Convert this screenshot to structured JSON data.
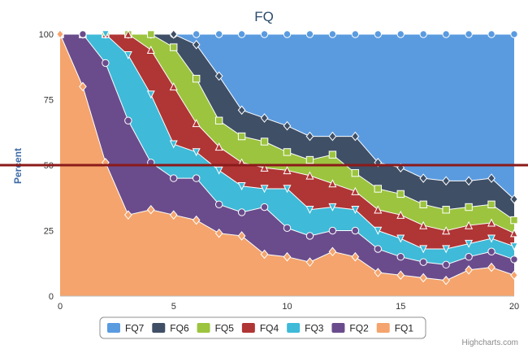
{
  "chart_data": {
    "type": "area",
    "title": "FQ",
    "xlabel": "",
    "ylabel": "Percent",
    "x": [
      0,
      1,
      2,
      3,
      4,
      5,
      6,
      7,
      8,
      9,
      10,
      11,
      12,
      13,
      14,
      15,
      16,
      17,
      18,
      19,
      20
    ],
    "xlim": [
      0,
      20
    ],
    "ylim": [
      0,
      100
    ],
    "x_ticks": [
      "0",
      "5",
      "10",
      "15",
      "20"
    ],
    "y_ticks": [
      "0",
      "25",
      "50",
      "75",
      "100"
    ],
    "grid": "horizontal",
    "legend_position": "bottom-center",
    "stacking": "cumulative boundaries (percent)",
    "series": [
      {
        "name": "FQ1",
        "color": "#f4a46c",
        "marker": "diamond",
        "values": [
          100,
          80,
          51,
          31,
          33,
          31,
          29,
          24,
          23,
          16,
          15,
          13,
          17,
          15,
          9,
          8,
          7,
          6,
          10,
          11,
          8
        ]
      },
      {
        "name": "FQ2",
        "color": "#6a4c8c",
        "marker": "circle",
        "values": [
          100,
          100,
          89,
          67,
          51,
          45,
          45,
          35,
          32,
          34,
          26,
          23,
          25,
          25,
          18,
          15,
          13,
          12,
          15,
          17,
          14
        ]
      },
      {
        "name": "FQ3",
        "color": "#3fbad8",
        "marker": "triangle-down",
        "values": [
          100,
          100,
          100,
          92,
          77,
          58,
          55,
          48,
          42,
          41,
          41,
          33,
          34,
          33,
          25,
          22,
          18,
          18,
          20,
          22,
          19
        ]
      },
      {
        "name": "FQ4",
        "color": "#b03535",
        "marker": "triangle",
        "values": [
          100,
          100,
          100,
          100,
          94,
          80,
          66,
          57,
          51,
          49,
          48,
          46,
          43,
          40,
          33,
          31,
          27,
          25,
          27,
          28,
          24
        ]
      },
      {
        "name": "FQ5",
        "color": "#9cc43f",
        "marker": "square",
        "values": [
          100,
          100,
          100,
          100,
          100,
          95,
          83,
          67,
          61,
          59,
          55,
          52,
          54,
          47,
          41,
          39,
          35,
          33,
          34,
          35,
          29
        ]
      },
      {
        "name": "FQ6",
        "color": "#3f4f66",
        "marker": "diamond",
        "values": [
          100,
          100,
          100,
          100,
          100,
          100,
          96,
          84,
          71,
          68,
          65,
          61,
          61,
          61,
          51,
          49,
          45,
          44,
          44,
          45,
          37
        ]
      },
      {
        "name": "FQ7",
        "color": "#5a9be0",
        "marker": "circle",
        "values": [
          100,
          100,
          100,
          100,
          100,
          100,
          100,
          100,
          100,
          100,
          100,
          100,
          100,
          100,
          100,
          100,
          100,
          100,
          100,
          100,
          100
        ]
      }
    ],
    "legend_order": [
      "FQ7",
      "FQ6",
      "FQ5",
      "FQ4",
      "FQ3",
      "FQ2",
      "FQ1"
    ],
    "reference_line": {
      "value": 50,
      "color": "#8b1a1a"
    },
    "credit": "Highcharts.com"
  }
}
